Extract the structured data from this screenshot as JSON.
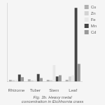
{
  "chart_data": {
    "type": "bar",
    "caption": "Fig. 3b. Heavy metal concentration in Eichhornia crass",
    "categories": [
      "Rhizome",
      "Tuber",
      "Stem",
      "Leaf"
    ],
    "series": [
      {
        "name": "Cu",
        "color": "#b0b0b0",
        "values": [
          1.5,
          1.8,
          1.5,
          1.5
        ]
      },
      {
        "name": "Zn",
        "color": "#d3d3d3",
        "values": [
          1.2,
          1.0,
          1.2,
          4.0
        ]
      },
      {
        "name": "Fe",
        "color": "#e8e8e8",
        "values": [
          1.5,
          1.5,
          13.0,
          5.0
        ]
      },
      {
        "name": "Mn",
        "color": "#444444",
        "values": [
          5.5,
          6.0,
          4.0,
          58.0
        ]
      },
      {
        "name": "Cd",
        "color": "#999999",
        "values": [
          3.5,
          2.8,
          5.0,
          14.0
        ]
      }
    ],
    "ylim": [
      0,
      62
    ],
    "tick_labels": "x",
    "grid": false,
    "legend": "right"
  }
}
